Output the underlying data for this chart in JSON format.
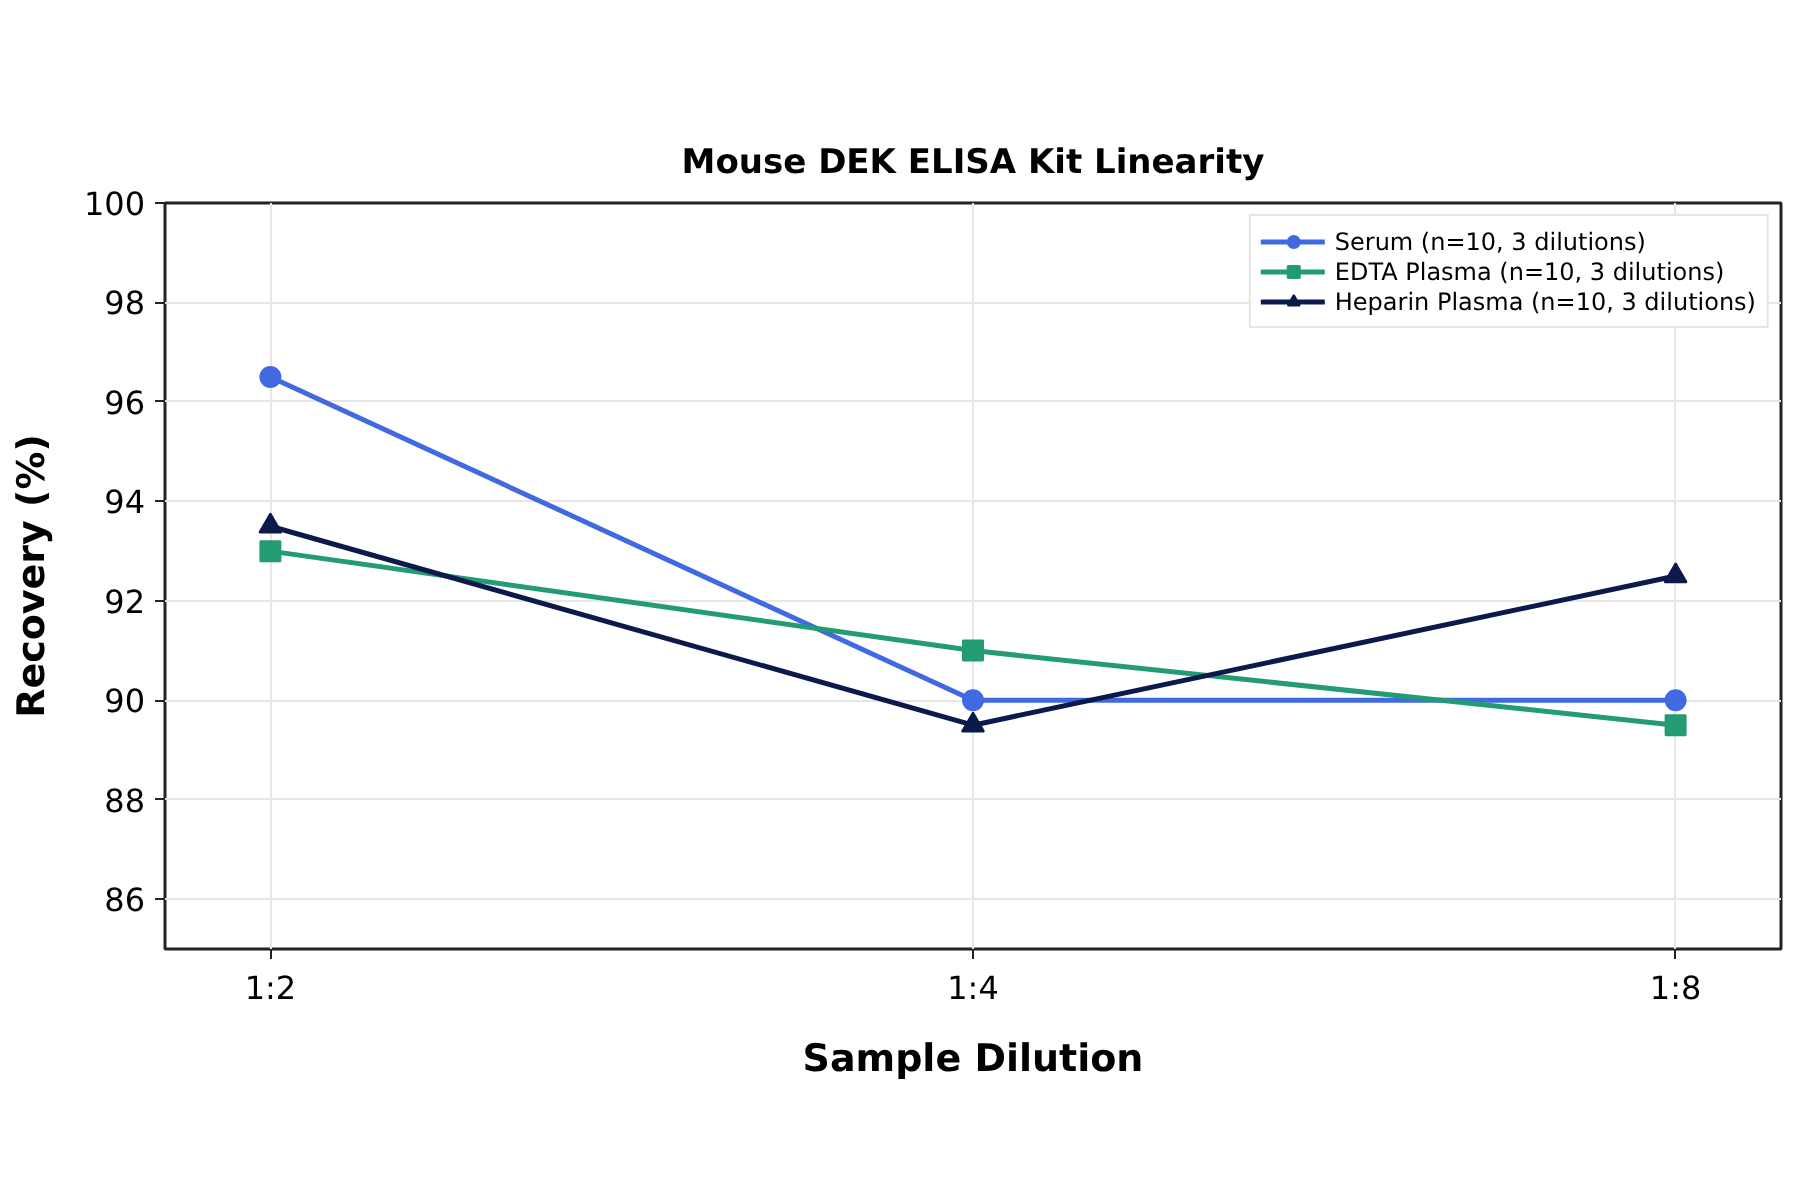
{
  "chart_data": {
    "type": "line",
    "title": "Mouse DEK ELISA Kit Linearity",
    "xlabel": "Sample Dilution",
    "ylabel": "Recovery (%)",
    "categories": [
      "1:2",
      "1:4",
      "1:8"
    ],
    "series": [
      {
        "name": "Serum (n=10, 3 dilutions)",
        "color": "#4169e1",
        "values": [
          96.5,
          90,
          90
        ],
        "marker": "circle"
      },
      {
        "name": "EDTA Plasma (n=10, 3 dilutions)",
        "color": "#239b74",
        "values": [
          93,
          91,
          89.5
        ],
        "marker": "square"
      },
      {
        "name": "Heparin Plasma (n=10, 3 dilutions)",
        "color": "#0b1a4a",
        "values": [
          93.5,
          89.5,
          92.5
        ],
        "marker": "triangle"
      }
    ],
    "ylim": [
      85,
      100
    ],
    "yticks": [
      86,
      88,
      90,
      92,
      94,
      96,
      98,
      100
    ],
    "grid": true,
    "legend": "top right",
    "line_style": "solid"
  }
}
